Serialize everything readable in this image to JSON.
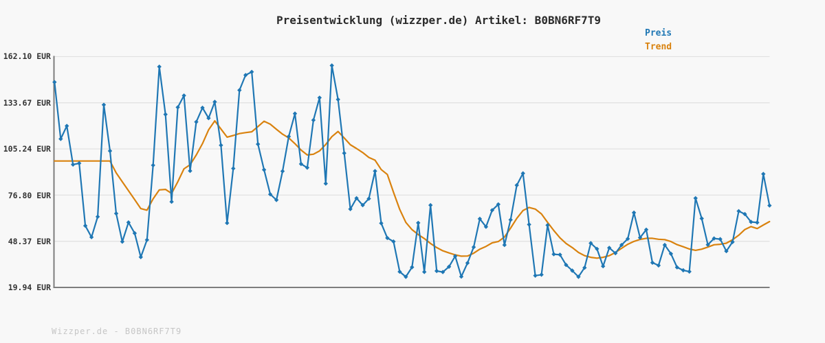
{
  "title": "Preisentwicklung (wizzper.de) Artikel: B0BN6RF7T9",
  "watermark": "Wizzper.de - B0BN6RF7T9",
  "colors": {
    "background": "#f8f8f8",
    "axis": "#7d7d7d",
    "grid": "#e2e2e2",
    "title_text": "#2b2b2b",
    "tick_text": "#333333",
    "watermark_text": "#c6c6c6",
    "price": "#1f77b4",
    "trend": "#d9820e"
  },
  "legend": [
    {
      "label": "Preis",
      "color": "#1f77b4"
    },
    {
      "label": "Trend",
      "color": "#d9820e"
    }
  ],
  "y_axis": {
    "unit": "EUR",
    "tick_labels": [
      "162.10 EUR",
      "133.67 EUR",
      "105.24 EUR",
      "76.80 EUR",
      "48.37 EUR",
      "19.94 EUR"
    ],
    "tick_values": [
      162.1,
      133.67,
      105.24,
      76.8,
      48.37,
      19.94
    ]
  },
  "chart_data": {
    "type": "line",
    "title": "Preisentwicklung (wizzper.de) Artikel: B0BN6RF7T9",
    "xlabel": "",
    "ylabel": "EUR",
    "ylim": [
      19.94,
      162.1
    ],
    "grid": "horizontal",
    "legend_position": "top-right",
    "x_axis_labels": "none",
    "series": [
      {
        "name": "Preis",
        "color": "#1f77b4",
        "marker": "diamond",
        "values": [
          146.4,
          111.4,
          119.4,
          95.6,
          96.4,
          57.9,
          50.9,
          63.5,
          132.4,
          104.0,
          65.5,
          48.1,
          60.0,
          53.3,
          38.6,
          49.2,
          95.2,
          155.9,
          126.5,
          72.7,
          130.9,
          138.1,
          91.7,
          121.9,
          130.6,
          124.2,
          134.2,
          107.5,
          59.6,
          93.2,
          141.4,
          150.7,
          152.7,
          108.2,
          92.4,
          77.3,
          73.8,
          91.5,
          112.9,
          127.0,
          96.0,
          93.7,
          123.0,
          136.8,
          83.9,
          156.6,
          135.7,
          102.6,
          68.2,
          74.9,
          70.6,
          74.6,
          91.6,
          59.5,
          50.4,
          48.2,
          29.6,
          26.5,
          32.4,
          59.7,
          29.5,
          70.6,
          30.1,
          29.4,
          32.7,
          39.2,
          26.6,
          35.0,
          44.8,
          62.2,
          57.3,
          67.5,
          71.1,
          46.1,
          61.6,
          82.9,
          90.2,
          58.7,
          27.2,
          27.8,
          58.3,
          40.4,
          40.1,
          33.8,
          30.3,
          26.5,
          32.1,
          47.2,
          43.7,
          33.0,
          44.3,
          41.0,
          46.1,
          49.9,
          66.0,
          50.6,
          55.5,
          35.2,
          33.5,
          46.1,
          40.7,
          32.3,
          30.5,
          29.7,
          74.9,
          62.4,
          46.2,
          50.1,
          49.7,
          42.3,
          47.9,
          66.9,
          65.1,
          60.3,
          59.9,
          89.8,
          70.4
        ]
      },
      {
        "name": "Trend",
        "color": "#d9820e",
        "marker": "none",
        "values": [
          97.8,
          97.8,
          97.8,
          97.8,
          97.8,
          97.8,
          97.8,
          97.8,
          97.8,
          97.8,
          90.5,
          85.0,
          79.5,
          74.0,
          68.5,
          67.5,
          74.5,
          80.0,
          80.3,
          77.8,
          85.0,
          93.0,
          95.5,
          101.5,
          108.5,
          117.0,
          122.5,
          117.5,
          112.5,
          113.5,
          114.7,
          115.3,
          115.8,
          119.0,
          122.3,
          120.5,
          117.3,
          114.3,
          112.0,
          108.5,
          104.5,
          101.5,
          102.0,
          104.0,
          108.0,
          112.8,
          116.0,
          112.0,
          107.8,
          105.5,
          103.0,
          100.0,
          98.3,
          92.5,
          89.5,
          78.5,
          68.0,
          60.0,
          55.5,
          52.5,
          50.0,
          47.0,
          44.5,
          42.5,
          41.2,
          40.0,
          39.2,
          39.3,
          41.0,
          43.5,
          45.2,
          47.4,
          48.2,
          51.0,
          56.5,
          62.5,
          67.3,
          69.2,
          68.2,
          65.2,
          60.0,
          55.0,
          50.5,
          47.0,
          44.5,
          41.5,
          39.5,
          38.5,
          38.0,
          38.5,
          39.5,
          41.5,
          44.0,
          46.5,
          48.3,
          49.5,
          50.2,
          50.2,
          49.6,
          49.4,
          48.2,
          46.3,
          45.0,
          43.6,
          42.8,
          43.5,
          44.8,
          46.2,
          46.5,
          47.2,
          49.3,
          52.1,
          55.6,
          57.4,
          56.2,
          58.4,
          60.5
        ]
      }
    ]
  }
}
